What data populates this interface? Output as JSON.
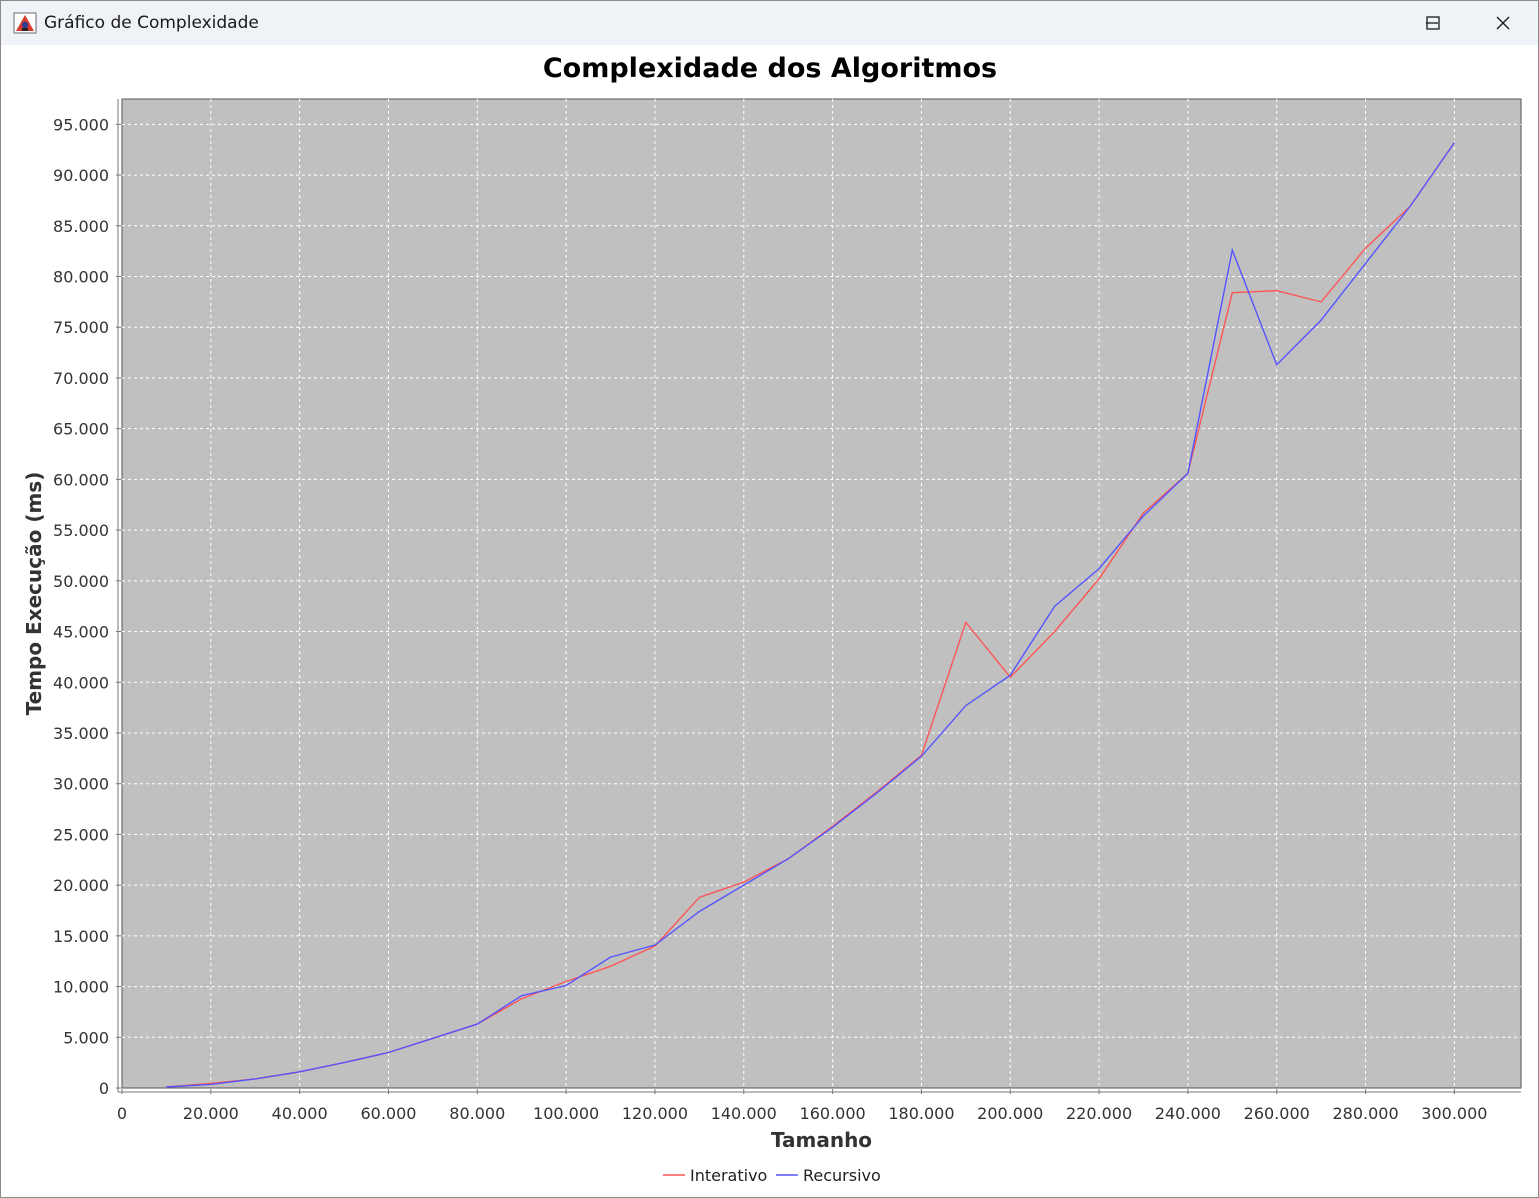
{
  "window": {
    "title": "Gráfico de Complexidade"
  },
  "icons": {
    "app": "java-app-icon",
    "minimize": "minimize-icon",
    "maximize": "maximize-icon",
    "close": "close-icon"
  },
  "colors": {
    "plot_background": "#c0c0c0",
    "grid": "#ffffff",
    "series_interativo": "#ff5555",
    "series_recursivo": "#5555ff"
  },
  "chart_data": {
    "type": "line",
    "title": "Complexidade dos Algoritmos",
    "xlabel": "Tamanho",
    "ylabel": "Tempo Execução (ms)",
    "xlim": [
      0,
      315000
    ],
    "ylim": [
      0,
      97500
    ],
    "grid": true,
    "legend_position": "bottom",
    "x_ticks": [
      "0",
      "20.000",
      "40.000",
      "60.000",
      "80.000",
      "100.000",
      "120.000",
      "140.000",
      "160.000",
      "180.000",
      "200.000",
      "220.000",
      "240.000",
      "260.000",
      "280.000",
      "300.000"
    ],
    "y_ticks": [
      "0",
      "5.000",
      "10.000",
      "15.000",
      "20.000",
      "25.000",
      "30.000",
      "35.000",
      "40.000",
      "45.000",
      "50.000",
      "55.000",
      "60.000",
      "65.000",
      "70.000",
      "75.000",
      "80.000",
      "85.000",
      "90.000",
      "95.000"
    ],
    "x": [
      10000,
      20000,
      30000,
      40000,
      50000,
      60000,
      70000,
      80000,
      90000,
      100000,
      110000,
      120000,
      130000,
      140000,
      150000,
      160000,
      170000,
      180000,
      190000,
      200000,
      210000,
      220000,
      230000,
      240000,
      250000,
      260000,
      270000,
      280000,
      290000,
      300000
    ],
    "series": [
      {
        "name": "Interativo",
        "values": [
          100,
          450,
          900,
          1600,
          2500,
          3500,
          4900,
          6300,
          8800,
          10500,
          12000,
          14000,
          18800,
          20300,
          22600,
          25800,
          29200,
          32800,
          45900,
          40500,
          45000,
          50200,
          56700,
          60600,
          78400,
          78600,
          77500,
          82800,
          86900,
          93200
        ]
      },
      {
        "name": "Recursivo",
        "values": [
          100,
          350,
          900,
          1600,
          2500,
          3500,
          4900,
          6300,
          9100,
          10100,
          12900,
          14100,
          17400,
          20000,
          22600,
          25700,
          29100,
          32700,
          37700,
          40700,
          47500,
          51200,
          56400,
          60600,
          82600,
          71300,
          75700,
          81300,
          86900,
          93200
        ]
      }
    ]
  }
}
